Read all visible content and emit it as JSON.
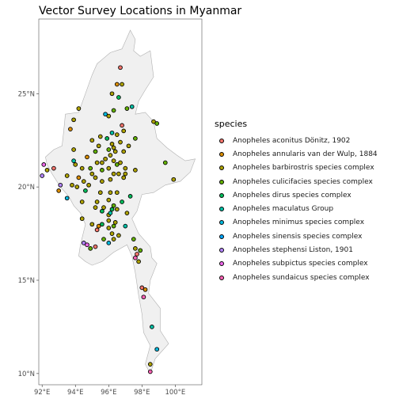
{
  "title": "Vector Survey Locations in Myanmar",
  "legend": {
    "title": "species",
    "entries": [
      {
        "label": "Anopheles aconitus Dönitz, 1902",
        "color": "#F8766D"
      },
      {
        "label": "Anopheles annularis van der Wulp, 1884",
        "color": "#DB8E00"
      },
      {
        "label": "Anopheles barbirostris species complex",
        "color": "#AEA200"
      },
      {
        "label": "Anopheles culicifacies species complex",
        "color": "#64B200"
      },
      {
        "label": "Anopheles dirus species complex",
        "color": "#00BD5C"
      },
      {
        "label": "Anopheles maculatus Group",
        "color": "#00C1A7"
      },
      {
        "label": "Anopheles minimus species complex",
        "color": "#00BADE"
      },
      {
        "label": "Anopheles sinensis species complex",
        "color": "#00A6FF"
      },
      {
        "label": "Anopheles stephensi Liston, 1901",
        "color": "#B385FF"
      },
      {
        "label": "Anopheles subpictus species complex",
        "color": "#EF67EB"
      },
      {
        "label": "Anopheles sundaicus species complex",
        "color": "#FF63B6"
      }
    ]
  },
  "axes": {
    "x_ticks": [
      "92°E",
      "94°E",
      "96°E",
      "98°E",
      "100°E"
    ],
    "y_ticks": [
      "10°N",
      "15°N",
      "20°N",
      "25°N"
    ]
  },
  "map_data": {
    "xlim": [
      91.8,
      101.6
    ],
    "ylim": [
      9.4,
      29.0
    ],
    "x_tick_values": [
      92,
      94,
      96,
      98,
      100
    ],
    "y_tick_values": [
      10,
      15,
      20,
      25
    ],
    "background": "#ffffff",
    "land_fill": "#f0f0f0",
    "border_color": "#b0b0b0",
    "outline": [
      [
        97.3,
        28.4
      ],
      [
        97.6,
        27.9
      ],
      [
        97.5,
        27.3
      ],
      [
        97.9,
        27.0
      ],
      [
        98.5,
        27.3
      ],
      [
        98.7,
        25.9
      ],
      [
        98.2,
        25.2
      ],
      [
        97.8,
        24.6
      ],
      [
        97.6,
        23.9
      ],
      [
        98.2,
        24.0
      ],
      [
        98.7,
        23.5
      ],
      [
        98.9,
        22.6
      ],
      [
        99.5,
        22.1
      ],
      [
        100.1,
        21.7
      ],
      [
        100.6,
        21.4
      ],
      [
        101.2,
        21.5
      ],
      [
        100.9,
        20.8
      ],
      [
        100.3,
        20.3
      ],
      [
        99.4,
        20.1
      ],
      [
        98.7,
        19.7
      ],
      [
        98.0,
        19.6
      ],
      [
        97.7,
        18.7
      ],
      [
        97.4,
        18.3
      ],
      [
        97.8,
        17.5
      ],
      [
        98.5,
        16.8
      ],
      [
        98.6,
        16.2
      ],
      [
        98.9,
        15.9
      ],
      [
        98.5,
        15.0
      ],
      [
        98.4,
        14.3
      ],
      [
        99.1,
        13.5
      ],
      [
        99.1,
        12.3
      ],
      [
        99.6,
        11.6
      ],
      [
        98.8,
        10.8
      ],
      [
        98.5,
        10.0
      ],
      [
        98.2,
        10.5
      ],
      [
        98.5,
        11.5
      ],
      [
        98.1,
        12.2
      ],
      [
        98.0,
        13.2
      ],
      [
        97.8,
        14.2
      ],
      [
        97.6,
        15.4
      ],
      [
        97.4,
        16.3
      ],
      [
        97.1,
        16.9
      ],
      [
        96.3,
        16.5
      ],
      [
        95.6,
        16.0
      ],
      [
        95.0,
        15.8
      ],
      [
        94.6,
        16.0
      ],
      [
        94.2,
        16.3
      ],
      [
        94.3,
        16.9
      ],
      [
        94.6,
        18.0
      ],
      [
        94.3,
        18.6
      ],
      [
        93.9,
        19.0
      ],
      [
        93.6,
        19.5
      ],
      [
        93.1,
        20.0
      ],
      [
        92.6,
        20.7
      ],
      [
        92.3,
        21.2
      ],
      [
        92.2,
        21.6
      ],
      [
        92.7,
        22.0
      ],
      [
        93.2,
        22.2
      ],
      [
        93.3,
        23.0
      ],
      [
        93.4,
        23.9
      ],
      [
        94.2,
        24.0
      ],
      [
        94.6,
        25.0
      ],
      [
        95.0,
        26.0
      ],
      [
        95.3,
        26.6
      ],
      [
        96.1,
        27.2
      ],
      [
        96.8,
        27.4
      ],
      [
        97.3,
        28.4
      ]
    ],
    "points": [
      {
        "lon": 96.7,
        "lat": 26.4,
        "s": 1
      },
      {
        "lon": 96.5,
        "lat": 25.5,
        "s": 2
      },
      {
        "lon": 96.8,
        "lat": 25.5,
        "s": 3
      },
      {
        "lon": 96.2,
        "lat": 25.0,
        "s": 3
      },
      {
        "lon": 96.6,
        "lat": 24.8,
        "s": 5
      },
      {
        "lon": 97.4,
        "lat": 24.3,
        "s": 6
      },
      {
        "lon": 94.2,
        "lat": 24.2,
        "s": 3
      },
      {
        "lon": 97.1,
        "lat": 24.2,
        "s": 4
      },
      {
        "lon": 96.3,
        "lat": 24.1,
        "s": 4
      },
      {
        "lon": 95.8,
        "lat": 23.9,
        "s": 7
      },
      {
        "lon": 96.0,
        "lat": 23.8,
        "s": 3
      },
      {
        "lon": 93.9,
        "lat": 23.6,
        "s": 3
      },
      {
        "lon": 98.7,
        "lat": 23.5,
        "s": 3
      },
      {
        "lon": 98.9,
        "lat": 23.4,
        "s": 4
      },
      {
        "lon": 96.8,
        "lat": 23.3,
        "s": 1
      },
      {
        "lon": 93.7,
        "lat": 23.1,
        "s": 2
      },
      {
        "lon": 96.9,
        "lat": 23.0,
        "s": 3
      },
      {
        "lon": 96.2,
        "lat": 22.9,
        "s": 6
      },
      {
        "lon": 96.5,
        "lat": 22.8,
        "s": 3
      },
      {
        "lon": 95.5,
        "lat": 22.7,
        "s": 3
      },
      {
        "lon": 95.0,
        "lat": 22.5,
        "s": 3
      },
      {
        "lon": 97.6,
        "lat": 22.6,
        "s": 4
      },
      {
        "lon": 96.7,
        "lat": 22.4,
        "s": 3
      },
      {
        "lon": 97.2,
        "lat": 22.2,
        "s": 3
      },
      {
        "lon": 95.4,
        "lat": 22.2,
        "s": 3
      },
      {
        "lon": 96.2,
        "lat": 22.3,
        "s": 3
      },
      {
        "lon": 96.3,
        "lat": 22.1,
        "s": 3
      },
      {
        "lon": 96.0,
        "lat": 22.0,
        "s": 4
      },
      {
        "lon": 96.4,
        "lat": 21.9,
        "s": 3
      },
      {
        "lon": 93.9,
        "lat": 22.0,
        "s": 3
      },
      {
        "lon": 95.2,
        "lat": 21.9,
        "s": 4
      },
      {
        "lon": 96.9,
        "lat": 21.9,
        "s": 3
      },
      {
        "lon": 96.1,
        "lat": 21.7,
        "s": 3
      },
      {
        "lon": 94.7,
        "lat": 21.6,
        "s": 2
      },
      {
        "lon": 95.8,
        "lat": 21.5,
        "s": 3
      },
      {
        "lon": 95.6,
        "lat": 21.3,
        "s": 3
      },
      {
        "lon": 96.3,
        "lat": 21.4,
        "s": 3
      },
      {
        "lon": 96.7,
        "lat": 21.3,
        "s": 3
      },
      {
        "lon": 96.5,
        "lat": 21.2,
        "s": 4
      },
      {
        "lon": 96.0,
        "lat": 21.0,
        "s": 3
      },
      {
        "lon": 97.0,
        "lat": 21.0,
        "s": 3
      },
      {
        "lon": 94.0,
        "lat": 21.2,
        "s": 3
      },
      {
        "lon": 94.9,
        "lat": 21.0,
        "s": 4
      },
      {
        "lon": 95.3,
        "lat": 21.3,
        "s": 3
      },
      {
        "lon": 96.3,
        "lat": 20.7,
        "s": 3
      },
      {
        "lon": 96.6,
        "lat": 20.7,
        "s": 3
      },
      {
        "lon": 97.0,
        "lat": 20.7,
        "s": 3
      },
      {
        "lon": 97.6,
        "lat": 20.9,
        "s": 3
      },
      {
        "lon": 96.9,
        "lat": 20.5,
        "s": 3
      },
      {
        "lon": 96.1,
        "lat": 20.4,
        "s": 3
      },
      {
        "lon": 95.6,
        "lat": 20.3,
        "s": 3
      },
      {
        "lon": 95.2,
        "lat": 20.5,
        "s": 3
      },
      {
        "lon": 95.0,
        "lat": 20.7,
        "s": 3
      },
      {
        "lon": 94.2,
        "lat": 20.5,
        "s": 2
      },
      {
        "lon": 94.5,
        "lat": 20.3,
        "s": 3
      },
      {
        "lon": 94.8,
        "lat": 20.1,
        "s": 3
      },
      {
        "lon": 94.1,
        "lat": 20.0,
        "s": 3
      },
      {
        "lon": 93.9,
        "lat": 21.4,
        "s": 6
      },
      {
        "lon": 94.4,
        "lat": 21.0,
        "s": 3
      },
      {
        "lon": 92.7,
        "lat": 21.0,
        "s": 1
      },
      {
        "lon": 92.3,
        "lat": 20.9,
        "s": 3
      },
      {
        "lon": 92.1,
        "lat": 21.2,
        "s": 10
      },
      {
        "lon": 92.0,
        "lat": 20.6,
        "s": 9
      },
      {
        "lon": 93.5,
        "lat": 20.6,
        "s": 3
      },
      {
        "lon": 93.8,
        "lat": 20.1,
        "s": 3
      },
      {
        "lon": 93.1,
        "lat": 20.1,
        "s": 9
      },
      {
        "lon": 93.0,
        "lat": 19.8,
        "s": 2
      },
      {
        "lon": 93.5,
        "lat": 19.4,
        "s": 7
      },
      {
        "lon": 94.4,
        "lat": 19.2,
        "s": 3
      },
      {
        "lon": 95.3,
        "lat": 19.2,
        "s": 3
      },
      {
        "lon": 95.5,
        "lat": 19.7,
        "s": 3
      },
      {
        "lon": 96.1,
        "lat": 19.7,
        "s": 3
      },
      {
        "lon": 96.0,
        "lat": 19.3,
        "s": 3
      },
      {
        "lon": 96.5,
        "lat": 19.7,
        "s": 3
      },
      {
        "lon": 96.3,
        "lat": 19.0,
        "s": 4
      },
      {
        "lon": 96.2,
        "lat": 18.8,
        "s": 5
      },
      {
        "lon": 96.5,
        "lat": 18.8,
        "s": 3
      },
      {
        "lon": 96.0,
        "lat": 18.5,
        "s": 3
      },
      {
        "lon": 95.7,
        "lat": 18.9,
        "s": 3
      },
      {
        "lon": 95.2,
        "lat": 18.9,
        "s": 3
      },
      {
        "lon": 95.6,
        "lat": 18.7,
        "s": 5
      },
      {
        "lon": 96.1,
        "lat": 18.6,
        "s": 6
      },
      {
        "lon": 97.1,
        "lat": 18.6,
        "s": 3
      },
      {
        "lon": 96.0,
        "lat": 18.2,
        "s": 3
      },
      {
        "lon": 96.4,
        "lat": 18.1,
        "s": 3
      },
      {
        "lon": 95.0,
        "lat": 18.0,
        "s": 3
      },
      {
        "lon": 94.4,
        "lat": 18.3,
        "s": 3
      },
      {
        "lon": 95.3,
        "lat": 17.7,
        "s": 1
      },
      {
        "lon": 95.4,
        "lat": 17.9,
        "s": 2
      },
      {
        "lon": 96.0,
        "lat": 17.8,
        "s": 3
      },
      {
        "lon": 97.0,
        "lat": 17.9,
        "s": 6
      },
      {
        "lon": 96.2,
        "lat": 17.5,
        "s": 3
      },
      {
        "lon": 96.6,
        "lat": 17.4,
        "s": 3
      },
      {
        "lon": 95.7,
        "lat": 17.2,
        "s": 4
      },
      {
        "lon": 96.0,
        "lat": 17.0,
        "s": 7
      },
      {
        "lon": 96.3,
        "lat": 17.2,
        "s": 3
      },
      {
        "lon": 97.5,
        "lat": 17.2,
        "s": 4
      },
      {
        "lon": 94.5,
        "lat": 17.0,
        "s": 9
      },
      {
        "lon": 94.7,
        "lat": 16.9,
        "s": 10
      },
      {
        "lon": 94.9,
        "lat": 16.7,
        "s": 4
      },
      {
        "lon": 95.2,
        "lat": 16.8,
        "s": 1
      },
      {
        "lon": 97.6,
        "lat": 16.7,
        "s": 3
      },
      {
        "lon": 97.7,
        "lat": 16.4,
        "s": 1
      },
      {
        "lon": 97.6,
        "lat": 16.2,
        "s": 11
      },
      {
        "lon": 97.8,
        "lat": 16.0,
        "s": 3
      },
      {
        "lon": 97.9,
        "lat": 16.6,
        "s": 4
      },
      {
        "lon": 98.0,
        "lat": 14.6,
        "s": 1
      },
      {
        "lon": 98.2,
        "lat": 14.5,
        "s": 2
      },
      {
        "lon": 98.1,
        "lat": 14.1,
        "s": 11
      },
      {
        "lon": 98.6,
        "lat": 12.5,
        "s": 6
      },
      {
        "lon": 98.9,
        "lat": 11.3,
        "s": 7
      },
      {
        "lon": 98.5,
        "lat": 10.5,
        "s": 3
      },
      {
        "lon": 98.5,
        "lat": 10.1,
        "s": 11
      },
      {
        "lon": 99.4,
        "lat": 21.3,
        "s": 4
      },
      {
        "lon": 99.9,
        "lat": 20.4,
        "s": 3
      },
      {
        "lon": 96.3,
        "lat": 17.9,
        "s": 4
      },
      {
        "lon": 95.6,
        "lat": 18.0,
        "s": 5
      },
      {
        "lon": 95.9,
        "lat": 22.6,
        "s": 5
      },
      {
        "lon": 95.6,
        "lat": 20.9,
        "s": 4
      },
      {
        "lon": 96.8,
        "lat": 19.2,
        "s": 5
      },
      {
        "lon": 94.6,
        "lat": 19.8,
        "s": 5
      },
      {
        "lon": 97.3,
        "lat": 19.5,
        "s": 5
      }
    ]
  }
}
